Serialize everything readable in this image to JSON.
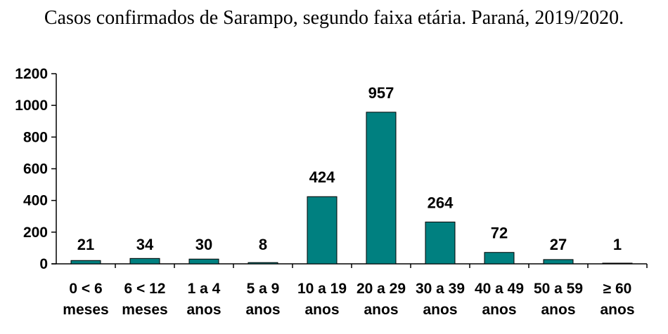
{
  "chart_data": {
    "type": "bar",
    "title": "Casos confirmados de Sarampo, segundo faixa etária. Paraná, 2019/2020.",
    "categories": [
      [
        "0 < 6",
        "meses"
      ],
      [
        "6 < 12",
        "meses"
      ],
      [
        "1 a 4",
        "anos"
      ],
      [
        "5 a 9",
        "anos"
      ],
      [
        "10 a 19",
        "anos"
      ],
      [
        "20 a 29",
        "anos"
      ],
      [
        "30 a 39",
        "anos"
      ],
      [
        "40 a 49",
        "anos"
      ],
      [
        "50 a 59",
        "anos"
      ],
      [
        "≥ 60",
        "anos"
      ]
    ],
    "values": [
      21,
      34,
      30,
      8,
      424,
      957,
      264,
      72,
      27,
      1
    ],
    "data_labels": [
      "21",
      "34",
      "30",
      "8",
      "424",
      "957",
      "264",
      "72",
      "27",
      "1"
    ],
    "ylim": [
      0,
      1200
    ],
    "yticks": [
      0,
      200,
      400,
      600,
      800,
      1000,
      1200
    ],
    "grid": false,
    "legend": "none",
    "bar_color": "#008080",
    "bar_edge_color": "#000000"
  }
}
